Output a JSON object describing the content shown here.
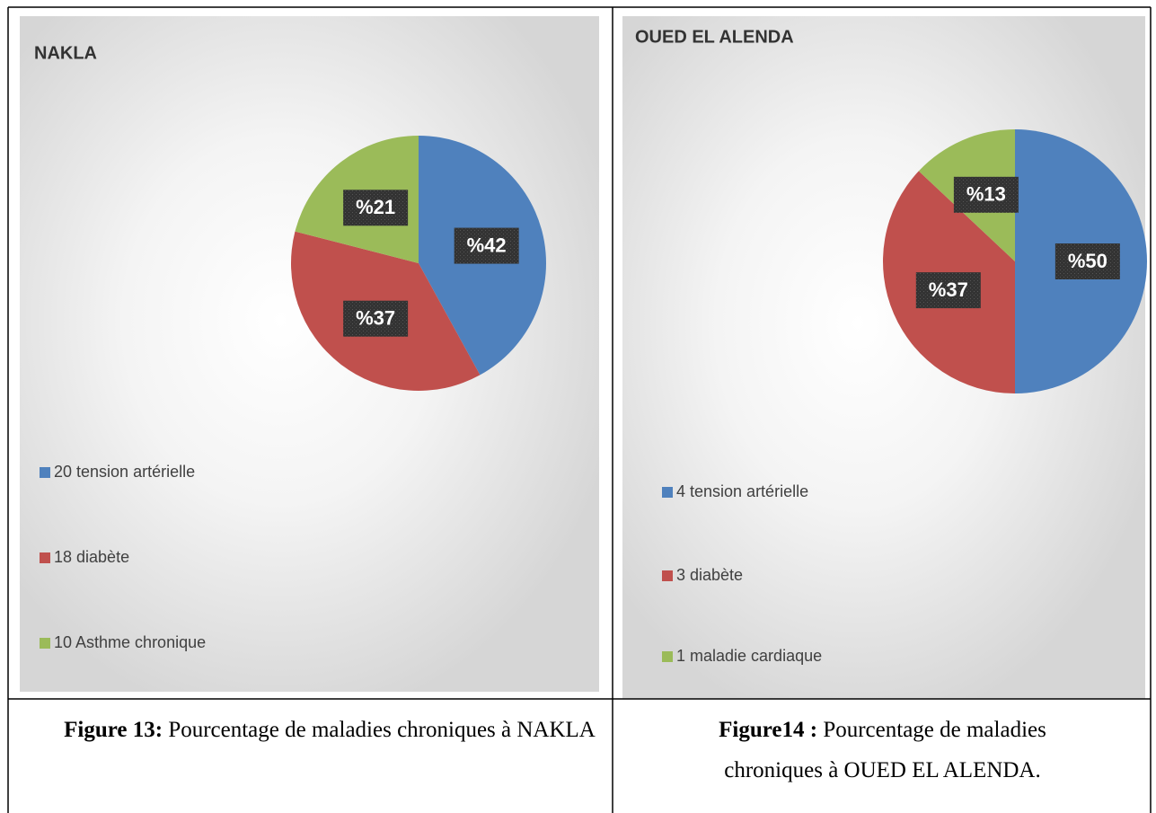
{
  "chart_data": [
    {
      "type": "pie",
      "title": "NAKLA",
      "categories": [
        "20 tension artérielle",
        "18 diabète",
        "10 Asthme chronique"
      ],
      "values": [
        42,
        37,
        21
      ],
      "value_labels": [
        "%42",
        "%37",
        "%21"
      ],
      "colors": [
        "#4f81bd",
        "#c0504d",
        "#9bbb59"
      ]
    },
    {
      "type": "pie",
      "title": "OUED EL ALENDA",
      "categories": [
        "4 tension artérielle",
        "3 diabète",
        "1 maladie cardiaque"
      ],
      "values": [
        50,
        37,
        13
      ],
      "value_labels": [
        "%50",
        "%37",
        "%13"
      ],
      "colors": [
        "#4f81bd",
        "#c0504d",
        "#9bbb59"
      ]
    }
  ],
  "captions": [
    {
      "label": "Figure 13:",
      "text": "Pourcentage de maladies chroniques à NAKLA"
    },
    {
      "label": "Figure14 :",
      "text": "Pourcentage de maladies chroniques à OUED EL ALENDA."
    }
  ]
}
